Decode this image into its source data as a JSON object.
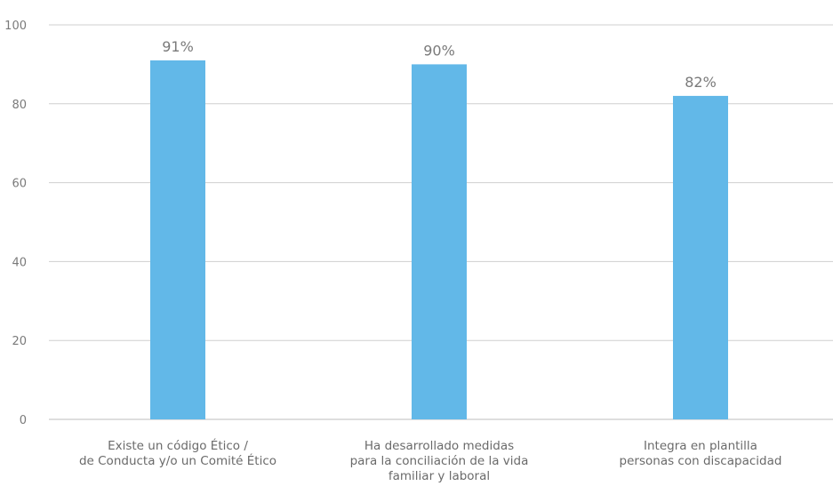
{
  "chart_data": {
    "type": "bar",
    "title": "",
    "xlabel": "",
    "ylabel": "",
    "ylim": [
      0,
      100
    ],
    "y_ticks": [
      0,
      20,
      40,
      60,
      80,
      100
    ],
    "grid": true,
    "bar_color": "#62b8e8",
    "categories": [
      [
        "Existe un código Ético /",
        "de Conducta y/o un Comité Ético"
      ],
      [
        "Ha desarrollado medidas",
        "para la conciliación de la vida",
        "familiar y laboral"
      ],
      [
        "Integra en plantilla",
        "personas con discapacidad"
      ]
    ],
    "values": [
      91,
      90,
      82
    ],
    "value_labels": [
      "91%",
      "90%",
      "82%"
    ]
  }
}
